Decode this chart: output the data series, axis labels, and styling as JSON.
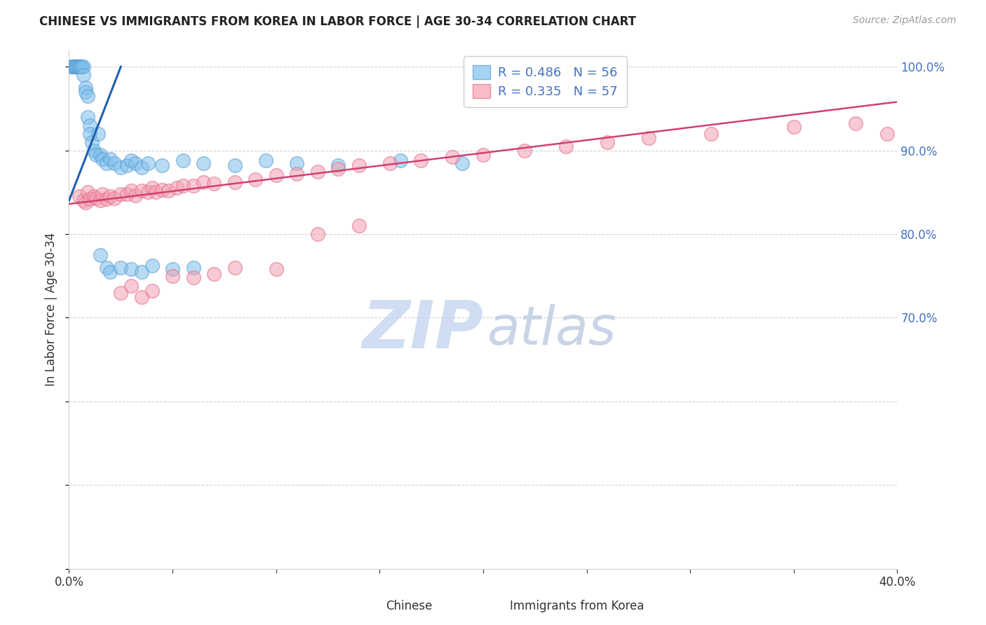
{
  "title": "CHINESE VS IMMIGRANTS FROM KOREA IN LABOR FORCE | AGE 30-34 CORRELATION CHART",
  "source": "Source: ZipAtlas.com",
  "ylabel_left": "In Labor Force | Age 30-34",
  "xlabel_chinese": "Chinese",
  "xlabel_korea": "Immigrants from Korea",
  "blue_color": "#7fbfec",
  "blue_edge_color": "#5a9fd4",
  "blue_line_color": "#2060b0",
  "pink_color": "#f4a0b0",
  "pink_edge_color": "#e07090",
  "pink_line_color": "#d04070",
  "right_tick_color": "#4472c4",
  "watermark_zip_color": "#c8d8f0",
  "watermark_atlas_color": "#b8c8e0",
  "grid_color": "#d0d0d0",
  "xmin": 0.0,
  "xmax": 0.4,
  "ymin": 0.4,
  "ymax": 1.02,
  "chinese_x": [
    0.001,
    0.002,
    0.002,
    0.003,
    0.003,
    0.003,
    0.004,
    0.004,
    0.004,
    0.005,
    0.005,
    0.005,
    0.006,
    0.006,
    0.006,
    0.007,
    0.007,
    0.008,
    0.008,
    0.009,
    0.009,
    0.01,
    0.01,
    0.011,
    0.012,
    0.013,
    0.014,
    0.015,
    0.016,
    0.018,
    0.02,
    0.022,
    0.025,
    0.028,
    0.03,
    0.032,
    0.035,
    0.038,
    0.045,
    0.055,
    0.065,
    0.08,
    0.095,
    0.11,
    0.13,
    0.16,
    0.19,
    0.015,
    0.018,
    0.02,
    0.025,
    0.03,
    0.035,
    0.04,
    0.05,
    0.06
  ],
  "chinese_y": [
    1.0,
    1.0,
    1.0,
    1.0,
    1.0,
    1.0,
    1.0,
    1.0,
    1.0,
    1.0,
    1.0,
    1.0,
    1.0,
    1.0,
    1.0,
    1.0,
    0.99,
    0.975,
    0.97,
    0.965,
    0.94,
    0.93,
    0.92,
    0.91,
    0.9,
    0.895,
    0.92,
    0.895,
    0.89,
    0.885,
    0.89,
    0.885,
    0.88,
    0.882,
    0.888,
    0.885,
    0.88,
    0.885,
    0.882,
    0.888,
    0.885,
    0.882,
    0.888,
    0.885,
    0.882,
    0.888,
    0.885,
    0.775,
    0.76,
    0.755,
    0.76,
    0.758,
    0.755,
    0.762,
    0.758,
    0.76
  ],
  "korea_x": [
    0.005,
    0.007,
    0.008,
    0.009,
    0.01,
    0.012,
    0.013,
    0.015,
    0.016,
    0.018,
    0.02,
    0.022,
    0.025,
    0.028,
    0.03,
    0.032,
    0.035,
    0.038,
    0.04,
    0.042,
    0.045,
    0.048,
    0.052,
    0.055,
    0.06,
    0.065,
    0.07,
    0.08,
    0.09,
    0.1,
    0.11,
    0.12,
    0.13,
    0.14,
    0.155,
    0.17,
    0.185,
    0.2,
    0.22,
    0.24,
    0.26,
    0.28,
    0.31,
    0.35,
    0.38,
    0.395,
    0.025,
    0.03,
    0.035,
    0.04,
    0.05,
    0.06,
    0.07,
    0.08,
    0.1,
    0.12,
    0.14
  ],
  "korea_y": [
    0.845,
    0.84,
    0.838,
    0.85,
    0.842,
    0.845,
    0.843,
    0.84,
    0.848,
    0.842,
    0.845,
    0.843,
    0.848,
    0.848,
    0.852,
    0.846,
    0.852,
    0.85,
    0.855,
    0.85,
    0.853,
    0.852,
    0.855,
    0.858,
    0.858,
    0.862,
    0.86,
    0.862,
    0.865,
    0.87,
    0.872,
    0.875,
    0.878,
    0.882,
    0.885,
    0.888,
    0.892,
    0.895,
    0.9,
    0.905,
    0.91,
    0.915,
    0.92,
    0.928,
    0.932,
    0.92,
    0.73,
    0.738,
    0.725,
    0.732,
    0.75,
    0.748,
    0.752,
    0.76,
    0.758,
    0.8,
    0.81
  ],
  "blue_trendline_x0": 0.0,
  "blue_trendline_y0": 0.84,
  "blue_trendline_x1": 0.025,
  "blue_trendline_y1": 1.0,
  "pink_trendline_x0": 0.0,
  "pink_trendline_y0": 0.836,
  "pink_trendline_x1": 0.4,
  "pink_trendline_y1": 0.958
}
